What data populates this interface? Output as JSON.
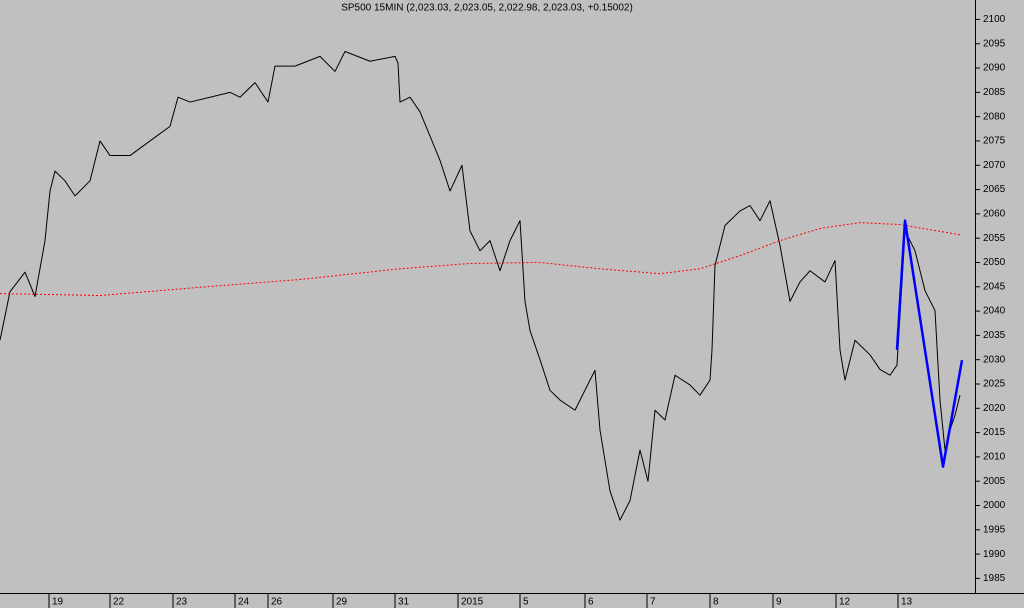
{
  "chart_data": {
    "type": "line",
    "title": "SP500 15MIN (2,023.03, 2,023.05, 2,022.98, 2,023.03, +0.15002)",
    "xlim": [
      0,
      975
    ],
    "xticks": [
      {
        "value": 49,
        "label": "19"
      },
      {
        "value": 110,
        "label": "22"
      },
      {
        "value": 173,
        "label": "23"
      },
      {
        "value": 235,
        "label": "24"
      },
      {
        "value": 268,
        "label": "26"
      },
      {
        "value": 333,
        "label": "29"
      },
      {
        "value": 395,
        "label": "31"
      },
      {
        "value": 458,
        "label": "2015"
      },
      {
        "value": 520,
        "label": "5"
      },
      {
        "value": 585,
        "label": "6"
      },
      {
        "value": 647,
        "label": "7"
      },
      {
        "value": 710,
        "label": "8"
      },
      {
        "value": 773,
        "label": "9"
      },
      {
        "value": 836,
        "label": "12"
      },
      {
        "value": 898,
        "label": "13"
      }
    ],
    "ylim": [
      1982,
      2104
    ],
    "yticks": [
      1985,
      1990,
      1995,
      2000,
      2005,
      2010,
      2015,
      2020,
      2025,
      2030,
      2035,
      2040,
      2045,
      2050,
      2055,
      2060,
      2065,
      2070,
      2075,
      2080,
      2085,
      2090,
      2095,
      2100
    ],
    "y_axis_side": "right",
    "grid": false,
    "series": [
      {
        "color": "#000000",
        "style": "solid",
        "x": [
          0,
          10,
          25,
          35,
          45,
          50,
          55,
          65,
          75,
          90,
          100,
          110,
          130,
          150,
          170,
          178,
          190,
          210,
          230,
          240,
          255,
          268,
          275,
          295,
          320,
          335,
          345,
          370,
          395,
          398,
          400,
          410,
          420,
          430,
          440,
          450,
          462,
          470,
          480,
          490,
          500,
          510,
          520,
          525,
          530,
          540,
          550,
          560,
          575,
          590,
          595,
          600,
          610,
          620,
          630,
          640,
          648,
          655,
          665,
          675,
          690,
          700,
          710,
          712,
          715,
          725,
          740,
          750,
          760,
          770,
          780,
          790,
          800,
          810,
          825,
          835,
          840,
          845,
          855,
          870,
          880,
          890,
          897,
          905,
          915,
          925,
          935,
          940,
          945,
          950,
          955,
          960
        ],
        "values": [
          2034,
          2044,
          2048,
          2043,
          2054.5,
          2064.7,
          2068.8,
          2066.8,
          2063.7,
          2066.8,
          2075,
          2072,
          2072,
          2075,
          2078,
          2084,
          2083,
          2084,
          2085,
          2084,
          2087,
          2083,
          2090.4,
          2090.4,
          2092.4,
          2089.3,
          2093.4,
          2091.4,
          2092.4,
          2091,
          2083,
          2084,
          2081,
          2076,
          2071,
          2064.7,
          2070,
          2056.5,
          2052.4,
          2054.5,
          2048.3,
          2054.5,
          2058.6,
          2042,
          2036,
          2030,
          2023.7,
          2021.7,
          2019.6,
          2025.8,
          2027.8,
          2015.5,
          2003,
          1997,
          2001,
          2011.4,
          2005,
          2019.6,
          2017.6,
          2026.8,
          2024.8,
          2022.7,
          2025.8,
          2032,
          2049.4,
          2057.6,
          2060.6,
          2061.7,
          2058.6,
          2062.7,
          2053.5,
          2042,
          2046,
          2048.3,
          2046,
          2050.4,
          2032,
          2025.8,
          2034,
          2031,
          2028,
          2026.8,
          2028.9,
          2056.5,
          2052.4,
          2044.2,
          2040.1,
          2021.7,
          2011.4,
          2015.5,
          2018.6,
          2022.7
        ]
      },
      {
        "color": "#ff0000",
        "style": "dashed",
        "x": [
          0,
          100,
          200,
          300,
          400,
          470,
          540,
          600,
          660,
          700,
          740,
          780,
          820,
          860,
          900,
          960
        ],
        "values": [
          2043.6,
          2043.2,
          2044.9,
          2046.5,
          2048.7,
          2049.8,
          2050,
          2048.7,
          2047.7,
          2048.7,
          2051.4,
          2054.5,
          2057,
          2058.2,
          2057.8,
          2055.7
        ]
      },
      {
        "color": "#0000ff",
        "style": "thick",
        "x": [
          897,
          905,
          943,
          962
        ],
        "values": [
          2032,
          2058.6,
          2008,
          2029.9
        ]
      }
    ]
  }
}
